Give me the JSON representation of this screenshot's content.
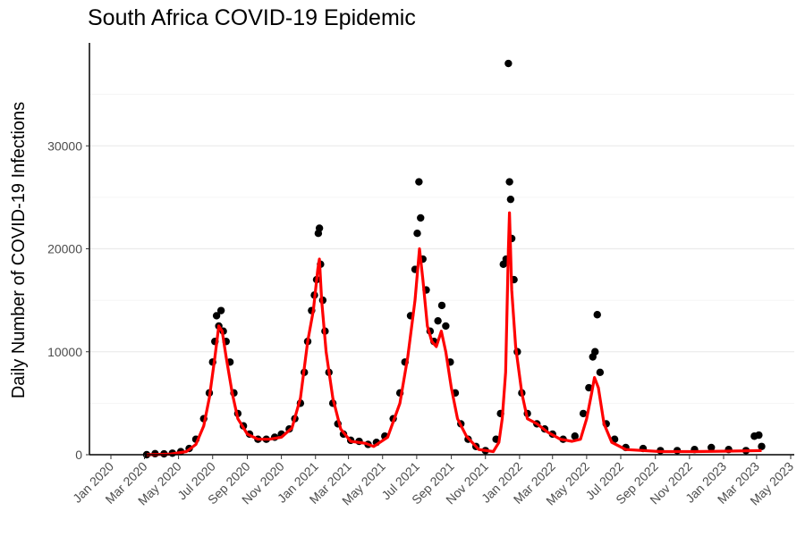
{
  "chart_data": {
    "type": "scatter",
    "title": "South Africa COVID-19 Epidemic",
    "xlabel": "",
    "ylabel": "Daily Number of COVID-19 Infections",
    "xlim": [
      "2020-01-01",
      "2023-05-01"
    ],
    "ylim": [
      0,
      40000
    ],
    "y_ticks": [
      0,
      10000,
      20000,
      30000
    ],
    "x_ticks": [
      {
        "date": "2020-01-01",
        "label": "Jan 2020"
      },
      {
        "date": "2020-03-01",
        "label": "Mar 2020"
      },
      {
        "date": "2020-05-01",
        "label": "May 2020"
      },
      {
        "date": "2020-07-01",
        "label": "Jul 2020"
      },
      {
        "date": "2020-09-01",
        "label": "Sep 2020"
      },
      {
        "date": "2020-11-01",
        "label": "Nov 2020"
      },
      {
        "date": "2021-01-01",
        "label": "Jan 2021"
      },
      {
        "date": "2021-03-01",
        "label": "Mar 2021"
      },
      {
        "date": "2021-05-01",
        "label": "May 2021"
      },
      {
        "date": "2021-07-01",
        "label": "Jul 2021"
      },
      {
        "date": "2021-09-01",
        "label": "Sep 2021"
      },
      {
        "date": "2021-11-01",
        "label": "Nov 2021"
      },
      {
        "date": "2022-01-01",
        "label": "Jan 2022"
      },
      {
        "date": "2022-03-01",
        "label": "Mar 2022"
      },
      {
        "date": "2022-05-01",
        "label": "May 2022"
      },
      {
        "date": "2022-07-01",
        "label": "Jul 2022"
      },
      {
        "date": "2022-09-01",
        "label": "Sep 2022"
      },
      {
        "date": "2022-11-01",
        "label": "Nov 2022"
      },
      {
        "date": "2023-01-01",
        "label": "Jan 2023"
      },
      {
        "date": "2023-03-01",
        "label": "Mar 2023"
      },
      {
        "date": "2023-05-01",
        "label": "May 2023"
      }
    ],
    "grid": true,
    "legend": "none",
    "series": [
      {
        "kind": "points",
        "color": "#000000",
        "points": [
          [
            "2020-03-05",
            0
          ],
          [
            "2020-03-20",
            100
          ],
          [
            "2020-04-05",
            80
          ],
          [
            "2020-04-20",
            150
          ],
          [
            "2020-05-05",
            300
          ],
          [
            "2020-05-20",
            600
          ],
          [
            "2020-06-01",
            1500
          ],
          [
            "2020-06-15",
            3500
          ],
          [
            "2020-06-25",
            6000
          ],
          [
            "2020-07-01",
            9000
          ],
          [
            "2020-07-05",
            11000
          ],
          [
            "2020-07-08",
            13500
          ],
          [
            "2020-07-12",
            12500
          ],
          [
            "2020-07-16",
            14000
          ],
          [
            "2020-07-20",
            12000
          ],
          [
            "2020-07-25",
            11000
          ],
          [
            "2020-08-01",
            9000
          ],
          [
            "2020-08-08",
            6000
          ],
          [
            "2020-08-15",
            4000
          ],
          [
            "2020-08-25",
            2800
          ],
          [
            "2020-09-05",
            2000
          ],
          [
            "2020-09-20",
            1500
          ],
          [
            "2020-10-05",
            1500
          ],
          [
            "2020-10-20",
            1700
          ],
          [
            "2020-11-01",
            2000
          ],
          [
            "2020-11-15",
            2500
          ],
          [
            "2020-11-25",
            3500
          ],
          [
            "2020-12-05",
            5000
          ],
          [
            "2020-12-12",
            8000
          ],
          [
            "2020-12-18",
            11000
          ],
          [
            "2020-12-25",
            14000
          ],
          [
            "2020-12-30",
            15500
          ],
          [
            "2021-01-03",
            17000
          ],
          [
            "2021-01-06",
            21500
          ],
          [
            "2021-01-08",
            22000
          ],
          [
            "2021-01-10",
            18500
          ],
          [
            "2021-01-14",
            15000
          ],
          [
            "2021-01-18",
            12000
          ],
          [
            "2021-01-25",
            8000
          ],
          [
            "2021-02-01",
            5000
          ],
          [
            "2021-02-10",
            3000
          ],
          [
            "2021-02-20",
            2000
          ],
          [
            "2021-03-05",
            1400
          ],
          [
            "2021-03-20",
            1300
          ],
          [
            "2021-04-05",
            1000
          ],
          [
            "2021-04-20",
            1200
          ],
          [
            "2021-05-05",
            1800
          ],
          [
            "2021-05-20",
            3500
          ],
          [
            "2021-06-01",
            6000
          ],
          [
            "2021-06-10",
            9000
          ],
          [
            "2021-06-20",
            13500
          ],
          [
            "2021-06-28",
            18000
          ],
          [
            "2021-07-02",
            21500
          ],
          [
            "2021-07-05",
            26500
          ],
          [
            "2021-07-08",
            23000
          ],
          [
            "2021-07-12",
            19000
          ],
          [
            "2021-07-18",
            16000
          ],
          [
            "2021-07-25",
            12000
          ],
          [
            "2021-08-01",
            11000
          ],
          [
            "2021-08-08",
            13000
          ],
          [
            "2021-08-15",
            14500
          ],
          [
            "2021-08-22",
            12500
          ],
          [
            "2021-08-30",
            9000
          ],
          [
            "2021-09-08",
            6000
          ],
          [
            "2021-09-18",
            3000
          ],
          [
            "2021-10-01",
            1500
          ],
          [
            "2021-10-15",
            800
          ],
          [
            "2021-11-01",
            400
          ],
          [
            "2021-11-20",
            1500
          ],
          [
            "2021-11-28",
            4000
          ],
          [
            "2021-12-03",
            18500
          ],
          [
            "2021-12-08",
            19000
          ],
          [
            "2021-12-12",
            38000
          ],
          [
            "2021-12-14",
            26500
          ],
          [
            "2021-12-16",
            24800
          ],
          [
            "2021-12-18",
            21000
          ],
          [
            "2021-12-22",
            17000
          ],
          [
            "2021-12-28",
            10000
          ],
          [
            "2022-01-05",
            6000
          ],
          [
            "2022-01-15",
            4000
          ],
          [
            "2022-02-01",
            3000
          ],
          [
            "2022-02-15",
            2500
          ],
          [
            "2022-03-01",
            2000
          ],
          [
            "2022-03-20",
            1500
          ],
          [
            "2022-04-10",
            1800
          ],
          [
            "2022-04-25",
            4000
          ],
          [
            "2022-05-05",
            6500
          ],
          [
            "2022-05-12",
            9500
          ],
          [
            "2022-05-16",
            10000
          ],
          [
            "2022-05-20",
            13600
          ],
          [
            "2022-05-25",
            8000
          ],
          [
            "2022-06-05",
            3000
          ],
          [
            "2022-06-20",
            1500
          ],
          [
            "2022-07-10",
            700
          ],
          [
            "2022-08-10",
            600
          ],
          [
            "2022-09-10",
            400
          ],
          [
            "2022-10-10",
            400
          ],
          [
            "2022-11-10",
            500
          ],
          [
            "2022-12-10",
            700
          ],
          [
            "2023-01-10",
            500
          ],
          [
            "2023-02-10",
            400
          ],
          [
            "2023-02-25",
            1800
          ],
          [
            "2023-03-05",
            1900
          ],
          [
            "2023-03-10",
            800
          ]
        ]
      },
      {
        "kind": "line",
        "color": "#ff0000",
        "points": [
          [
            "2020-03-05",
            0
          ],
          [
            "2020-04-15",
            50
          ],
          [
            "2020-05-15",
            300
          ],
          [
            "2020-06-01",
            1000
          ],
          [
            "2020-06-15",
            2800
          ],
          [
            "2020-06-25",
            5500
          ],
          [
            "2020-07-05",
            9500
          ],
          [
            "2020-07-12",
            12500
          ],
          [
            "2020-07-18",
            12000
          ],
          [
            "2020-07-25",
            9500
          ],
          [
            "2020-08-05",
            6000
          ],
          [
            "2020-08-15",
            3500
          ],
          [
            "2020-09-01",
            2000
          ],
          [
            "2020-09-20",
            1500
          ],
          [
            "2020-10-10",
            1500
          ],
          [
            "2020-11-01",
            1700
          ],
          [
            "2020-11-20",
            2600
          ],
          [
            "2020-12-05",
            5500
          ],
          [
            "2020-12-18",
            11000
          ],
          [
            "2020-12-28",
            14000
          ],
          [
            "2021-01-05",
            18000
          ],
          [
            "2021-01-08",
            19000
          ],
          [
            "2021-01-12",
            15000
          ],
          [
            "2021-01-20",
            10000
          ],
          [
            "2021-02-01",
            5500
          ],
          [
            "2021-02-15",
            2500
          ],
          [
            "2021-03-05",
            1300
          ],
          [
            "2021-04-01",
            1100
          ],
          [
            "2021-04-15",
            800
          ],
          [
            "2021-05-10",
            1700
          ],
          [
            "2021-06-01",
            5000
          ],
          [
            "2021-06-15",
            9500
          ],
          [
            "2021-06-28",
            15000
          ],
          [
            "2021-07-06",
            20000
          ],
          [
            "2021-07-12",
            17000
          ],
          [
            "2021-07-20",
            12500
          ],
          [
            "2021-07-28",
            11000
          ],
          [
            "2021-08-05",
            10500
          ],
          [
            "2021-08-14",
            12000
          ],
          [
            "2021-08-22",
            10000
          ],
          [
            "2021-09-01",
            6500
          ],
          [
            "2021-09-12",
            3500
          ],
          [
            "2021-09-28",
            1800
          ],
          [
            "2021-10-20",
            500
          ],
          [
            "2021-11-15",
            300
          ],
          [
            "2021-11-25",
            1200
          ],
          [
            "2021-12-01",
            3500
          ],
          [
            "2021-12-07",
            8000
          ],
          [
            "2021-12-12",
            20000
          ],
          [
            "2021-12-14",
            23500
          ],
          [
            "2021-12-18",
            16000
          ],
          [
            "2021-12-25",
            10500
          ],
          [
            "2022-01-05",
            6000
          ],
          [
            "2022-01-15",
            3500
          ],
          [
            "2022-02-01",
            3000
          ],
          [
            "2022-02-20",
            2200
          ],
          [
            "2022-03-15",
            1500
          ],
          [
            "2022-04-05",
            1300
          ],
          [
            "2022-04-20",
            1500
          ],
          [
            "2022-05-01",
            3500
          ],
          [
            "2022-05-10",
            6000
          ],
          [
            "2022-05-15",
            7500
          ],
          [
            "2022-05-22",
            6500
          ],
          [
            "2022-06-01",
            3000
          ],
          [
            "2022-06-15",
            1200
          ],
          [
            "2022-07-10",
            500
          ],
          [
            "2022-09-10",
            300
          ],
          [
            "2022-11-10",
            300
          ],
          [
            "2023-01-10",
            350
          ],
          [
            "2023-03-10",
            400
          ]
        ]
      }
    ]
  }
}
